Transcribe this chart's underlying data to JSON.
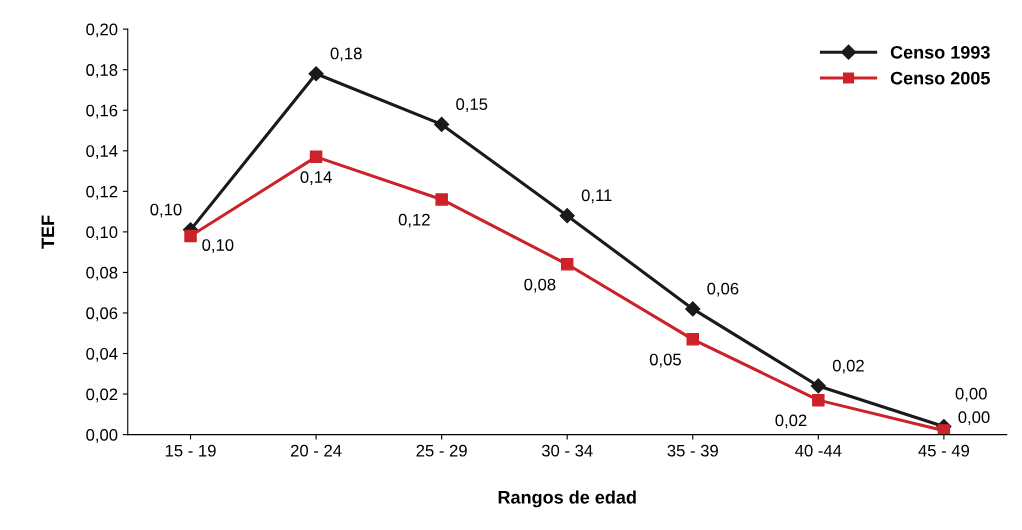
{
  "chart_data": {
    "type": "line",
    "xlabel": "Rangos de edad",
    "ylabel": "TEF",
    "categories": [
      "15 - 19",
      "20 - 24",
      "25 - 29",
      "30 - 34",
      "35 - 39",
      "40 -44",
      "45 - 49"
    ],
    "series": [
      {
        "name": "Censo 1993",
        "color": "#1a1a1a",
        "marker": "diamond",
        "values": [
          0.101,
          0.178,
          0.153,
          0.108,
          0.062,
          0.024,
          0.004
        ],
        "value_labels": [
          "0,10",
          "0,18",
          "0,15",
          "0,11",
          "0,06",
          "0,02",
          "0,00"
        ]
      },
      {
        "name": "Censo 2005",
        "color": "#cc2229",
        "marker": "square",
        "values": [
          0.098,
          0.137,
          0.116,
          0.084,
          0.047,
          0.017,
          0.002
        ],
        "value_labels": [
          "0,10",
          "0,14",
          "0,12",
          "0,08",
          "0,05",
          "0,02",
          "0,00"
        ]
      }
    ],
    "ylim": [
      0,
      0.2
    ],
    "yticks": [
      {
        "value": 0,
        "label": "0,00"
      },
      {
        "value": 0.02,
        "label": "0,02"
      },
      {
        "value": 0.04,
        "label": "0,04"
      },
      {
        "value": 0.06,
        "label": "0,06"
      },
      {
        "value": 0.08,
        "label": "0,08"
      },
      {
        "value": 0.1,
        "label": "0,10"
      },
      {
        "value": 0.12,
        "label": "0,12"
      },
      {
        "value": 0.14,
        "label": "0,14"
      },
      {
        "value": 0.16,
        "label": "0,16"
      },
      {
        "value": 0.18,
        "label": "0,18"
      },
      {
        "value": 0.2,
        "label": "0,20"
      }
    ],
    "legend": "top right",
    "grid": false,
    "line_style": "solid"
  }
}
